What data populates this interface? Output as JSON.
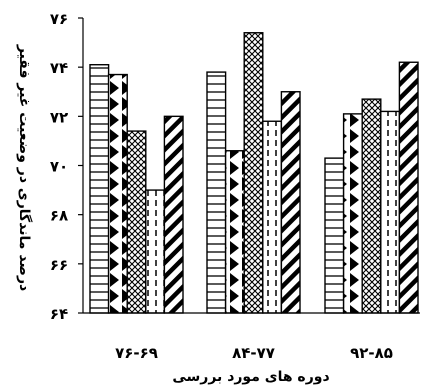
{
  "chart_data": {
    "type": "bar",
    "xlabel": "دوره های مورد بررسی",
    "ylabel": "درصد ماندگاری در وضعیت غیر فقیر",
    "ylim": [
      64,
      76
    ],
    "yticks": [
      64,
      66,
      68,
      70,
      72,
      74,
      76
    ],
    "ytick_labels": [
      "۶۴",
      "۶۶",
      "۶۸",
      "۷۰",
      "۷۲",
      "۷۴",
      "۷۶"
    ],
    "categories": [
      "۷۶-۶۹",
      "۸۴-۷۷",
      "۹۲-۸۵"
    ],
    "series": [
      {
        "pattern": "horizontal-lines",
        "values": [
          74.1,
          73.8,
          70.3
        ]
      },
      {
        "pattern": "triangles",
        "values": [
          73.7,
          70.6,
          72.1
        ]
      },
      {
        "pattern": "diamond-lattice",
        "values": [
          71.4,
          75.4,
          72.7
        ]
      },
      {
        "pattern": "vertical-dashes",
        "values": [
          69.0,
          71.8,
          72.2
        ]
      },
      {
        "pattern": "diagonal-stripes",
        "values": [
          72.0,
          73.0,
          74.2
        ]
      }
    ],
    "grid": false,
    "legend": "none"
  }
}
